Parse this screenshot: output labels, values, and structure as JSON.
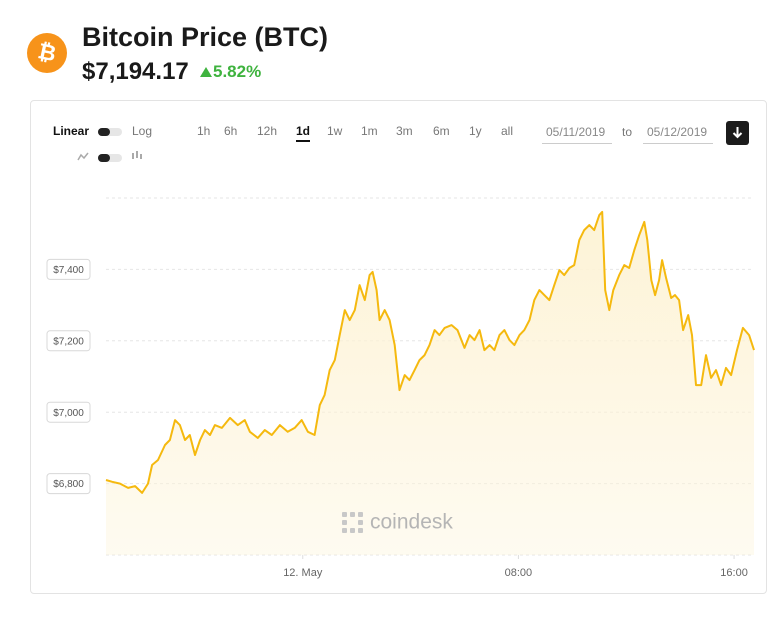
{
  "header": {
    "icon_symbol": "₿",
    "title": "Bitcoin Price (BTC)",
    "price": "$7,194.17",
    "change": "5.82%"
  },
  "controls": {
    "scale_options": [
      "Linear",
      "Log"
    ],
    "ranges": [
      "1h",
      "6h",
      "12h",
      "1d",
      "1w",
      "1m",
      "3m",
      "6m",
      "1y",
      "all"
    ],
    "active_range": "1d",
    "date_from": "05/11/2019",
    "date_separator": "to",
    "date_to": "05/12/2019"
  },
  "watermark": "coindesk",
  "chart_data": {
    "type": "area",
    "color": "#f5b90f",
    "fill": "#fdf3d6",
    "grid": true,
    "x": [
      -7.3,
      -7.07,
      -6.78,
      -6.48,
      -6.22,
      -5.96,
      -5.74,
      -5.59,
      -5.37,
      -5.11,
      -4.93,
      -4.74,
      -4.56,
      -4.37,
      -4.19,
      -4.0,
      -3.81,
      -3.63,
      -3.44,
      -3.26,
      -3.0,
      -2.7,
      -2.41,
      -2.15,
      -1.96,
      -1.67,
      -1.41,
      -1.15,
      -0.85,
      -0.56,
      -0.3,
      -0.04,
      0.19,
      0.44,
      0.63,
      0.81,
      1.0,
      1.19,
      1.37,
      1.56,
      1.74,
      1.93,
      2.11,
      2.3,
      2.48,
      2.59,
      2.74,
      2.85,
      3.04,
      3.22,
      3.41,
      3.59,
      3.78,
      3.96,
      4.15,
      4.33,
      4.52,
      4.7,
      4.89,
      5.07,
      5.26,
      5.52,
      5.74,
      6.0,
      6.19,
      6.37,
      6.56,
      6.74,
      6.93,
      7.11,
      7.3,
      7.48,
      7.67,
      7.85,
      8.04,
      8.22,
      8.41,
      8.59,
      8.78,
      8.96,
      9.15,
      9.33,
      9.52,
      9.7,
      9.89,
      10.07,
      10.26,
      10.44,
      10.63,
      10.81,
      11.0,
      11.11,
      11.22,
      11.37,
      11.52,
      11.74,
      11.93,
      12.11,
      12.3,
      12.48,
      12.67,
      12.78,
      12.93,
      13.07,
      13.22,
      13.33,
      13.48,
      13.67,
      13.81,
      13.96,
      14.11,
      14.3,
      14.44,
      14.59,
      14.78,
      14.96,
      15.15,
      15.33,
      15.52,
      15.7,
      15.89,
      16.11,
      16.33,
      16.56,
      16.74
    ],
    "values": [
      6810,
      6805,
      6800,
      6788,
      6793,
      6774,
      6800,
      6852,
      6866,
      6908,
      6922,
      6978,
      6964,
      6922,
      6936,
      6880,
      6922,
      6950,
      6936,
      6964,
      6956,
      6984,
      6964,
      6978,
      6945,
      6928,
      6950,
      6936,
      6964,
      6945,
      6956,
      6978,
      6945,
      6936,
      7020,
      7048,
      7118,
      7146,
      7216,
      7286,
      7258,
      7286,
      7356,
      7314,
      7384,
      7393,
      7342,
      7258,
      7286,
      7258,
      7188,
      7062,
      7104,
      7090,
      7118,
      7146,
      7160,
      7188,
      7230,
      7216,
      7236,
      7244,
      7230,
      7180,
      7216,
      7202,
      7230,
      7174,
      7188,
      7174,
      7216,
      7230,
      7202,
      7188,
      7216,
      7230,
      7258,
      7314,
      7342,
      7328,
      7314,
      7356,
      7398,
      7384,
      7404,
      7412,
      7482,
      7510,
      7524,
      7510,
      7552,
      7561,
      7342,
      7286,
      7342,
      7384,
      7412,
      7404,
      7454,
      7496,
      7533,
      7482,
      7370,
      7328,
      7370,
      7426,
      7376,
      7320,
      7328,
      7314,
      7230,
      7272,
      7216,
      7076,
      7076,
      7160,
      7096,
      7118,
      7076,
      7124,
      7104,
      7174,
      7236,
      7216,
      7174
    ],
    "xlim": [
      -7.3,
      16.74
    ],
    "xticks": [
      {
        "value": 0,
        "label": "12. May"
      },
      {
        "value": 8,
        "label": "08:00"
      },
      {
        "value": 16,
        "label": "16:00"
      }
    ],
    "ylim": [
      6600,
      7600
    ],
    "yticks": [
      {
        "value": 6800,
        "label": "$6,800"
      },
      {
        "value": 7000,
        "label": "$7,000"
      },
      {
        "value": 7200,
        "label": "$7,200"
      },
      {
        "value": 7400,
        "label": "$7,400"
      }
    ]
  }
}
